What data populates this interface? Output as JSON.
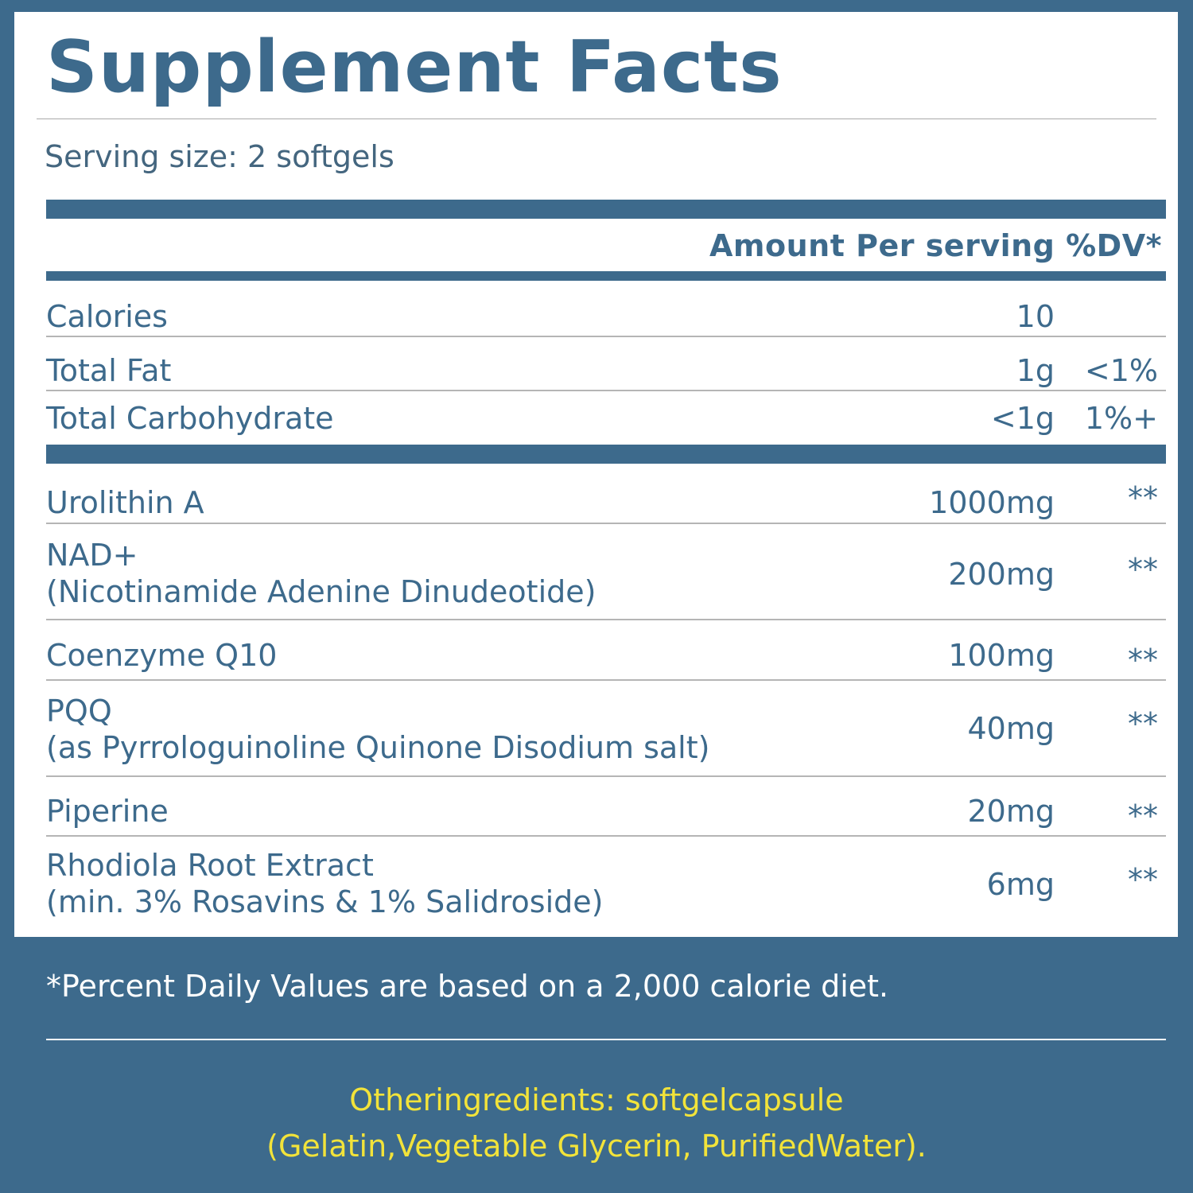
{
  "title": "Supplement Facts",
  "serving_size": "Serving size: 2 softgels",
  "header": "Amount Per serving %DV*",
  "basic_rows": [
    {
      "name": "Calories",
      "amount": "10",
      "dv": ""
    },
    {
      "name": "Total Fat",
      "amount": "1g",
      "dv": "<1%"
    },
    {
      "name": "Total Carbohydrate",
      "amount": "<1g",
      "dv": "1%+"
    }
  ],
  "ingredients": [
    {
      "name": "Urolithin A",
      "sub": "",
      "amount": "1000mg",
      "dv": "**"
    },
    {
      "name": "NAD+",
      "sub": "(Nicotinamide Adenine Dinudeotide)",
      "amount": "200mg",
      "dv": "**"
    },
    {
      "name": "Coenzyme Q10",
      "sub": "",
      "amount": "100mg",
      "dv": "**"
    },
    {
      "name": "PQQ",
      "sub": "(as Pyrrologuinoline Quinone Disodium salt)",
      "amount": "40mg",
      "dv": "**"
    },
    {
      "name": "Piperine",
      "sub": "",
      "amount": "20mg",
      "dv": "**"
    },
    {
      "name": "Rhodiola Root Extract",
      "sub": "(min. 3% Rosavins & 1% Salidroside)",
      "amount": "6mg",
      "dv": "**"
    }
  ],
  "footnote": "*Percent Daily Values are based on a 2,000 calorie diet.",
  "other_ingredients": {
    "line1": "Otheringredients: softgelcapsule",
    "line2": "(Gelatin,Vegetable Glycerin, PurifiedWater)."
  },
  "colors": {
    "brand_blue": "#3d6a8c",
    "accent_yellow": "#f2e33a"
  }
}
